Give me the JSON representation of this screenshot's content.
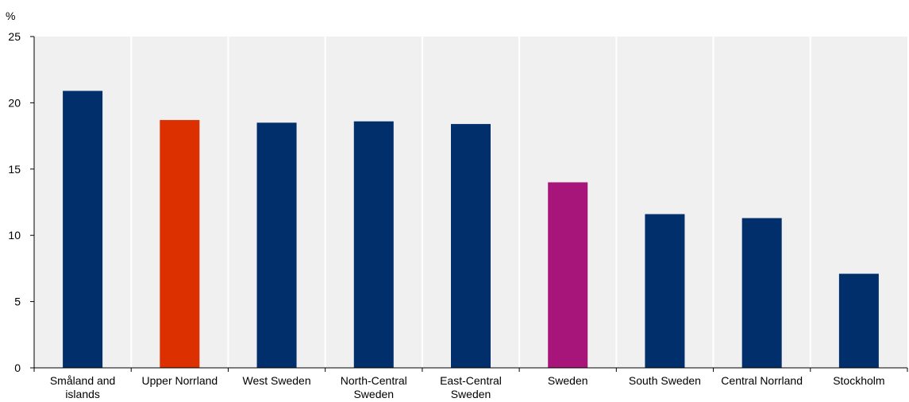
{
  "chart_data": {
    "type": "bar",
    "title": "",
    "xlabel": "",
    "ylabel": "%",
    "ylim": [
      0,
      25
    ],
    "yticks": [
      0,
      5,
      10,
      15,
      20,
      25
    ],
    "grid": "vertical separators between categories",
    "legend": "none",
    "categories": [
      [
        "Småland and",
        "islands"
      ],
      [
        "Upper Norrland"
      ],
      [
        "West Sweden"
      ],
      [
        "North-Central",
        "Sweden"
      ],
      [
        "East-Central",
        "Sweden"
      ],
      [
        "Sweden"
      ],
      [
        "South Sweden"
      ],
      [
        "Central Norrland"
      ],
      [
        "Stockholm"
      ]
    ],
    "values": [
      20.9,
      18.7,
      18.5,
      18.6,
      18.4,
      14.0,
      11.6,
      11.3,
      7.1
    ],
    "bar_colors": [
      "#002f6c",
      "#dc3000",
      "#002f6c",
      "#002f6c",
      "#002f6c",
      "#a8157a",
      "#002f6c",
      "#002f6c",
      "#002f6c"
    ],
    "plot_background": "#f0f0f0"
  }
}
